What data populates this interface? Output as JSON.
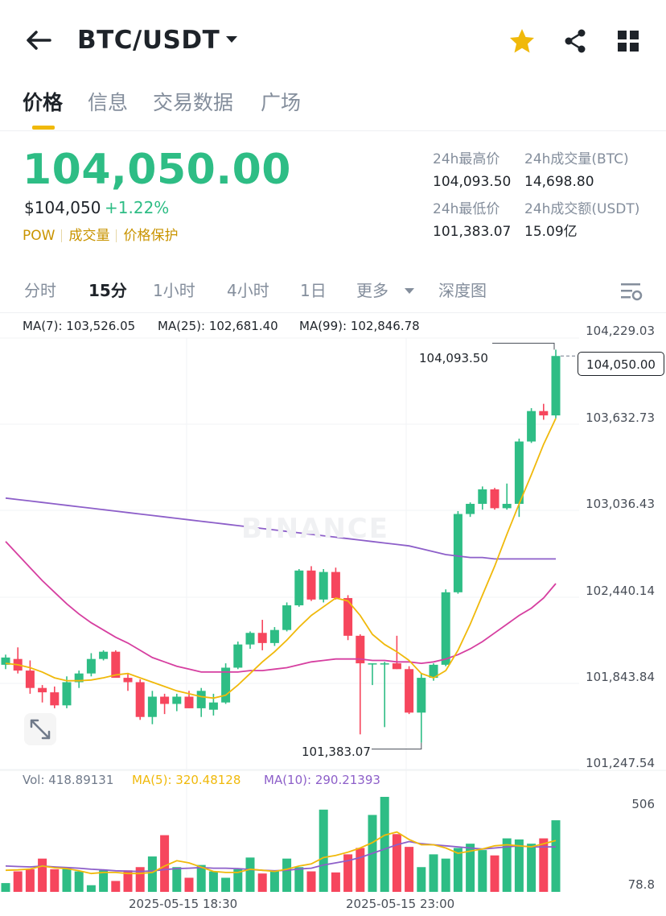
{
  "header": {
    "pair": "BTC/USDT",
    "icons": [
      "back-arrow-icon",
      "caret-down-icon",
      "star-icon",
      "share-icon",
      "grid-icon"
    ],
    "star_color": "#f0b90b"
  },
  "tabs": [
    {
      "label": "价格",
      "active": true
    },
    {
      "label": "信息",
      "active": false
    },
    {
      "label": "交易数据",
      "active": false
    },
    {
      "label": "广场",
      "active": false
    }
  ],
  "price": {
    "last": "104,050.00",
    "usd": "$104,050",
    "change_pct": "+1.22%",
    "tags": [
      "POW",
      "成交量",
      "价格保护"
    ],
    "up_color": "#2ebd85",
    "down_color": "#f6465d"
  },
  "stats": {
    "high_label": "24h最高价",
    "high_value": "104,093.50",
    "vol_btc_label": "24h成交量(BTC)",
    "vol_btc_value": "14,698.80",
    "low_label": "24h最低价",
    "low_value": "101,383.07",
    "vol_usdt_label": "24h成交额(USDT)",
    "vol_usdt_value": "15.09亿"
  },
  "intervals": {
    "items": [
      {
        "label": "分时",
        "active": false
      },
      {
        "label": "15分",
        "active": true
      },
      {
        "label": "1小时",
        "active": false
      },
      {
        "label": "4小时",
        "active": false
      },
      {
        "label": "1日",
        "active": false
      },
      {
        "label": "更多",
        "active": false
      },
      {
        "label": "深度图",
        "active": false
      }
    ]
  },
  "ma_legend": {
    "ma7": "MA(7): 103,526.05",
    "ma25": "MA(25): 102,681.40",
    "ma99": "MA(99): 102,846.78",
    "ma7_color": "#f0b90b",
    "ma25_color": "#d63fa0",
    "ma99_color": "#8d5fc9"
  },
  "price_axis": [
    "104,229.03",
    "103,632.73",
    "103,036.43",
    "102,440.14",
    "101,843.84",
    "101,247.54"
  ],
  "current_price_box": "104,050.00",
  "high_marker": "104,093.50",
  "low_marker": "101,383.07",
  "watermark": "BINANCE",
  "volume_legend": {
    "vol": "Vol: 418.89131",
    "ma5": "MA(5): 320.48128",
    "ma10": "MA(10): 290.21393"
  },
  "volume_axis": [
    "506",
    "78.8"
  ],
  "time_axis": [
    "2025-05-15 18:30",
    "2025-05-15 23:00"
  ],
  "chart_data": {
    "type": "candlestick",
    "interval": "15分",
    "candles": [
      {
        "o": 101920,
        "h": 101990,
        "l": 101890,
        "c": 101970
      },
      {
        "o": 101960,
        "h": 102040,
        "l": 101860,
        "c": 101880
      },
      {
        "o": 101880,
        "h": 101950,
        "l": 101720,
        "c": 101760
      },
      {
        "o": 101760,
        "h": 101780,
        "l": 101660,
        "c": 101730
      },
      {
        "o": 101730,
        "h": 101770,
        "l": 101620,
        "c": 101640
      },
      {
        "o": 101640,
        "h": 101840,
        "l": 101620,
        "c": 101800
      },
      {
        "o": 101800,
        "h": 101880,
        "l": 101760,
        "c": 101860
      },
      {
        "o": 101860,
        "h": 102000,
        "l": 101840,
        "c": 101960
      },
      {
        "o": 101960,
        "h": 102020,
        "l": 101950,
        "c": 102010
      },
      {
        "o": 102010,
        "h": 102020,
        "l": 101840,
        "c": 101830
      },
      {
        "o": 101830,
        "h": 101860,
        "l": 101740,
        "c": 101800
      },
      {
        "o": 101800,
        "h": 101820,
        "l": 101540,
        "c": 101560
      },
      {
        "o": 101560,
        "h": 101740,
        "l": 101510,
        "c": 101700
      },
      {
        "o": 101700,
        "h": 101720,
        "l": 101580,
        "c": 101650
      },
      {
        "o": 101650,
        "h": 101720,
        "l": 101600,
        "c": 101700
      },
      {
        "o": 101700,
        "h": 101740,
        "l": 101620,
        "c": 101620
      },
      {
        "o": 101620,
        "h": 101760,
        "l": 101560,
        "c": 101740
      },
      {
        "o": 101610,
        "h": 101720,
        "l": 101570,
        "c": 101660
      },
      {
        "o": 101660,
        "h": 101930,
        "l": 101650,
        "c": 101900
      },
      {
        "o": 101900,
        "h": 102080,
        "l": 101890,
        "c": 102060
      },
      {
        "o": 102060,
        "h": 102150,
        "l": 102030,
        "c": 102140
      },
      {
        "o": 102140,
        "h": 102230,
        "l": 102020,
        "c": 102070
      },
      {
        "o": 102070,
        "h": 102180,
        "l": 102050,
        "c": 102160
      },
      {
        "o": 102160,
        "h": 102350,
        "l": 102150,
        "c": 102330
      },
      {
        "o": 102330,
        "h": 102580,
        "l": 102320,
        "c": 102570
      },
      {
        "o": 102570,
        "h": 102600,
        "l": 102360,
        "c": 102370
      },
      {
        "o": 102370,
        "h": 102580,
        "l": 102350,
        "c": 102560
      },
      {
        "o": 102560,
        "h": 102590,
        "l": 102370,
        "c": 102380
      },
      {
        "o": 102380,
        "h": 102400,
        "l": 102090,
        "c": 102120
      },
      {
        "o": 102120,
        "h": 102130,
        "l": 101440,
        "c": 101930
      },
      {
        "o": 101930,
        "h": 101930,
        "l": 101780,
        "c": 101930
      },
      {
        "o": 101930,
        "h": 101940,
        "l": 101490,
        "c": 101930
      },
      {
        "o": 101930,
        "h": 102120,
        "l": 101890,
        "c": 101890
      },
      {
        "o": 101890,
        "h": 101910,
        "l": 101580,
        "c": 101590
      },
      {
        "o": 101590,
        "h": 101860,
        "l": 101383.07,
        "c": 101830
      },
      {
        "o": 101830,
        "h": 101930,
        "l": 101810,
        "c": 101920
      },
      {
        "o": 101920,
        "h": 102440,
        "l": 101910,
        "c": 102420
      },
      {
        "o": 102420,
        "h": 102980,
        "l": 102410,
        "c": 102960
      },
      {
        "o": 102960,
        "h": 103040,
        "l": 102940,
        "c": 103030
      },
      {
        "o": 103030,
        "h": 103150,
        "l": 102990,
        "c": 103130
      },
      {
        "o": 103130,
        "h": 103140,
        "l": 102990,
        "c": 103000
      },
      {
        "o": 103000,
        "h": 103170,
        "l": 102990,
        "c": 103030
      },
      {
        "o": 103030,
        "h": 103480,
        "l": 102940,
        "c": 103460
      },
      {
        "o": 103460,
        "h": 103690,
        "l": 103450,
        "c": 103670
      },
      {
        "o": 103670,
        "h": 103720,
        "l": 103610,
        "c": 103640
      },
      {
        "o": 103640,
        "h": 104093.5,
        "l": 103620,
        "c": 104050
      }
    ],
    "ma7": [
      101930,
      101920,
      101900,
      101870,
      101830,
      101810,
      101810,
      101815,
      101830,
      101850,
      101860,
      101830,
      101800,
      101770,
      101740,
      101720,
      101700,
      101690,
      101710,
      101780,
      101860,
      101940,
      102010,
      102090,
      102180,
      102260,
      102320,
      102380,
      102360,
      102260,
      102130,
      102060,
      102010,
      101950,
      101860,
      101830,
      101880,
      102020,
      102200,
      102400,
      102600,
      102820,
      103030,
      103230,
      103440,
      103620
    ],
    "ma25": [
      102770,
      102680,
      102590,
      102500,
      102420,
      102340,
      102270,
      102210,
      102160,
      102110,
      102070,
      102020,
      101970,
      101940,
      101910,
      101890,
      101870,
      101870,
      101870,
      101870,
      101880,
      101880,
      101890,
      101900,
      101920,
      101940,
      101950,
      101960,
      101960,
      101960,
      101950,
      101950,
      101940,
      101940,
      101930,
      101940,
      101960,
      101990,
      102030,
      102080,
      102140,
      102200,
      102260,
      102310,
      102380,
      102480
    ],
    "ma99": [
      103070,
      103060,
      103050,
      103040,
      103030,
      103020,
      103010,
      103000,
      102990,
      102980,
      102970,
      102960,
      102950,
      102940,
      102930,
      102920,
      102910,
      102900,
      102890,
      102880,
      102870,
      102860,
      102850,
      102840,
      102830,
      102820,
      102810,
      102800,
      102790,
      102780,
      102770,
      102760,
      102750,
      102740,
      102720,
      102700,
      102680,
      102670,
      102660,
      102660,
      102650,
      102650,
      102650,
      102650,
      102650,
      102650
    ],
    "volume": [
      120,
      175,
      185,
      235,
      185,
      190,
      175,
      110,
      180,
      130,
      180,
      195,
      245,
      345,
      195,
      145,
      205,
      175,
      145,
      185,
      240,
      165,
      180,
      235,
      195,
      175,
      465,
      170,
      255,
      285,
      440,
      525,
      350,
      290,
      195,
      255,
      235,
      285,
      305,
      275,
      250,
      330,
      325,
      305,
      330,
      415
    ],
    "volume_ma5": [
      180,
      182,
      186,
      200,
      192,
      188,
      178,
      165,
      170,
      170,
      165,
      165,
      170,
      200,
      225,
      215,
      195,
      175,
      170,
      170,
      185,
      180,
      175,
      185,
      200,
      210,
      240,
      250,
      265,
      285,
      310,
      345,
      360,
      325,
      300,
      300,
      285,
      260,
      270,
      280,
      295,
      300,
      295,
      290,
      305,
      320
    ],
    "volume_ma10": [
      200,
      198,
      196,
      200,
      196,
      193,
      190,
      185,
      182,
      178,
      176,
      175,
      177,
      183,
      188,
      190,
      193,
      190,
      190,
      188,
      184,
      180,
      178,
      180,
      186,
      190,
      205,
      215,
      225,
      240,
      260,
      280,
      300,
      315,
      305,
      300,
      295,
      290,
      285,
      280,
      285,
      290,
      295,
      290,
      290,
      290
    ],
    "ylim": [
      101247.54,
      104229.03
    ],
    "vol_ylim": [
      78.8,
      506
    ]
  }
}
